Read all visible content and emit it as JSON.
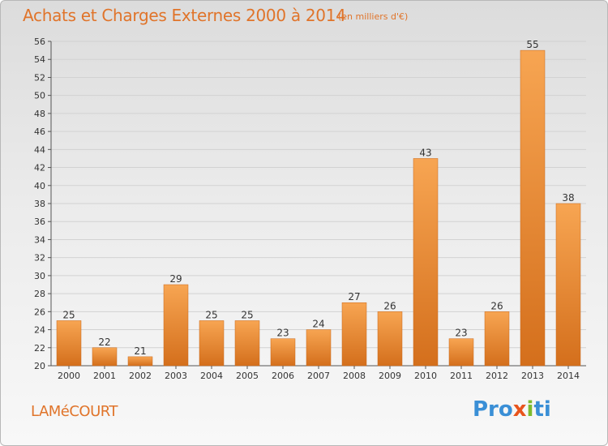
{
  "title": "Achats et Charges Externes 2000 à 2014",
  "unit": "(en milliers d'€)",
  "commune": "LAMéCOURT",
  "brand": {
    "p1": "Pro",
    "p2": "x",
    "p3": "i",
    "p4": "ti"
  },
  "colors": {
    "bar_light": "#f7a552",
    "bar_dark": "#d97420",
    "text_orange": "#e0742a"
  },
  "chart_data": {
    "type": "bar",
    "title": "Achats et Charges Externes 2000 à 2014",
    "xlabel": "",
    "ylabel": "",
    "categories": [
      "2000",
      "2001",
      "2002",
      "2003",
      "2004",
      "2005",
      "2006",
      "2007",
      "2008",
      "2009",
      "2010",
      "2011",
      "2012",
      "2013",
      "2014"
    ],
    "values": [
      25,
      22,
      21,
      29,
      25,
      25,
      23,
      24,
      27,
      26,
      43,
      23,
      26,
      55,
      38
    ],
    "ylim": [
      20,
      56
    ],
    "yticks": [
      20,
      22,
      24,
      26,
      28,
      30,
      32,
      34,
      36,
      38,
      40,
      42,
      44,
      46,
      48,
      50,
      52,
      54,
      56
    ],
    "grid": true,
    "legend": "none"
  }
}
